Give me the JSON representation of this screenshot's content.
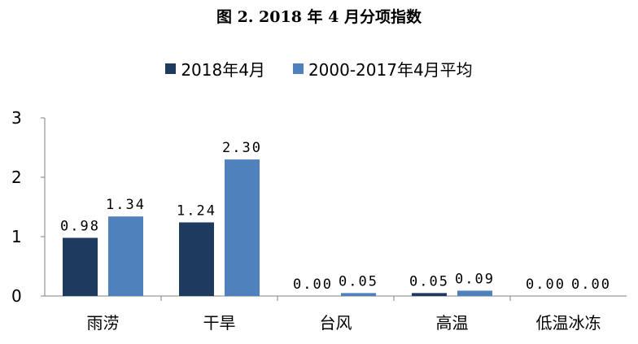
{
  "chart_data": {
    "type": "bar",
    "title": "图 2. 2018 年 4 月分项指数",
    "categories": [
      "雨涝",
      "干旱",
      "台风",
      "高温",
      "低温冰冻"
    ],
    "series": [
      {
        "name": "2018年4月",
        "values": [
          0.98,
          1.24,
          0.0,
          0.05,
          0.0
        ],
        "labels": [
          "0.98",
          "1.24",
          "0.00",
          "0.05",
          "0.00"
        ],
        "color": "#1f3a5f"
      },
      {
        "name": "2000-2017年4月平均",
        "values": [
          1.34,
          2.3,
          0.05,
          0.09,
          0.0
        ],
        "labels": [
          "1.34",
          "2.30",
          "0.05",
          "0.09",
          "0.00"
        ],
        "color": "#4f81bd"
      }
    ],
    "ylim": [
      0,
      3
    ],
    "yticks": [
      "0",
      "1",
      "2",
      "3"
    ],
    "xlabel": "",
    "ylabel": "",
    "legend_position": "top",
    "grid": false
  }
}
